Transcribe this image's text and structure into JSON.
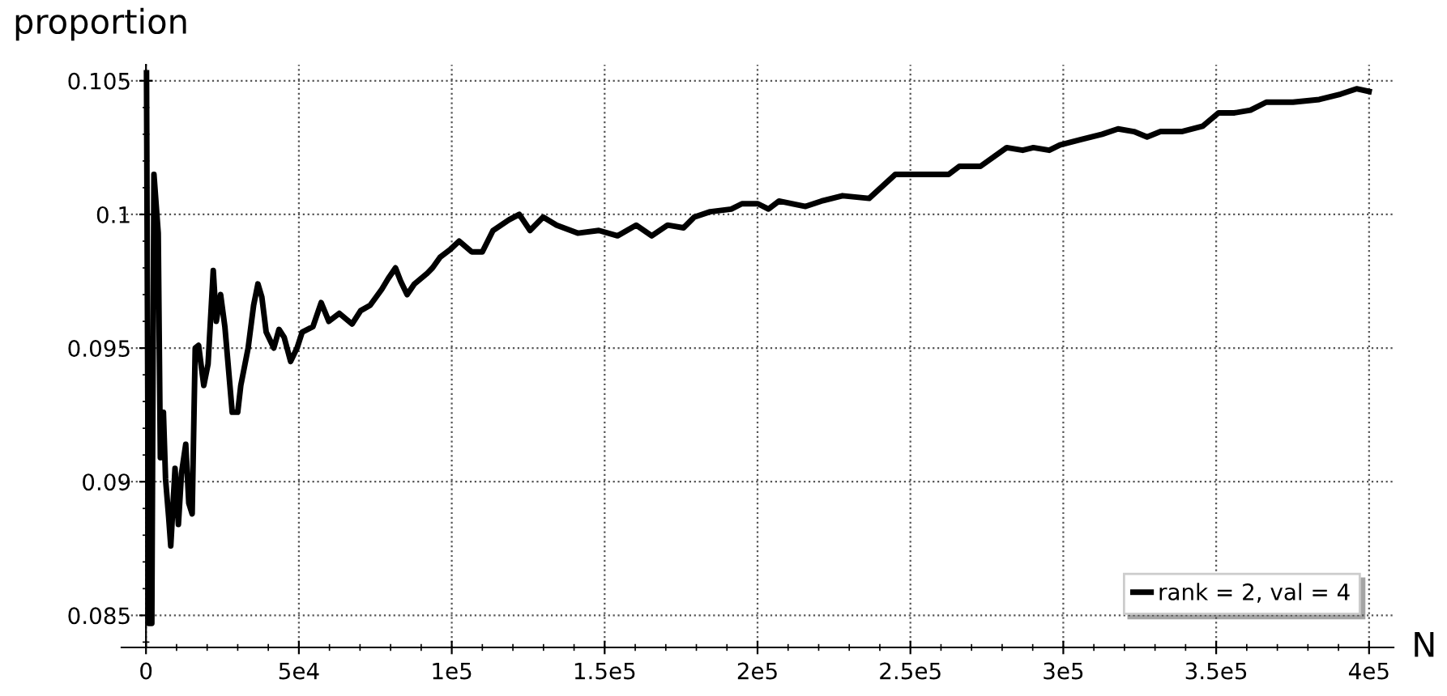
{
  "chart_data": {
    "type": "line",
    "xlabel": "N",
    "ylabel": "proportion",
    "x": [
      170,
      870,
      1900,
      2600,
      4000,
      4700,
      5700,
      6400,
      7400,
      8100,
      9500,
      10600,
      11600,
      13000,
      14000,
      15100,
      16100,
      17200,
      18900,
      20300,
      22000,
      23000,
      24400,
      25800,
      28200,
      30000,
      31000,
      33400,
      35200,
      36600,
      37900,
      39300,
      41800,
      43500,
      45200,
      47300,
      49400,
      51100,
      54600,
      57300,
      59800,
      63200,
      67400,
      70200,
      73300,
      77100,
      79200,
      81600,
      83300,
      85400,
      87800,
      92000,
      93700,
      96200,
      99600,
      102400,
      106500,
      110000,
      113500,
      118700,
      122100,
      125600,
      129900,
      134300,
      141200,
      148100,
      154200,
      160300,
      165400,
      170600,
      175800,
      179300,
      184500,
      191400,
      194900,
      200100,
      203600,
      207000,
      215700,
      220900,
      227800,
      236500,
      245100,
      250300,
      257300,
      262500,
      266000,
      272900,
      281500,
      286700,
      290200,
      295400,
      298900,
      305800,
      312700,
      317900,
      323100,
      327400,
      331800,
      338700,
      345600,
      350800,
      356000,
      361200,
      366400,
      375100,
      383700,
      390700,
      395900,
      400000
    ],
    "series": [
      {
        "name": "rank = 2, val = 4",
        "color": "#000000",
        "values": [
          0.1053,
          0.0847,
          0.0847,
          0.1015,
          0.0993,
          0.0909,
          0.0926,
          0.0901,
          0.0887,
          0.0876,
          0.0905,
          0.0884,
          0.0903,
          0.0914,
          0.0892,
          0.0888,
          0.095,
          0.0951,
          0.0936,
          0.0944,
          0.0979,
          0.096,
          0.097,
          0.0958,
          0.0926,
          0.0926,
          0.0936,
          0.095,
          0.0966,
          0.0974,
          0.0969,
          0.0956,
          0.095,
          0.0957,
          0.0954,
          0.0945,
          0.095,
          0.0956,
          0.0958,
          0.0967,
          0.096,
          0.0963,
          0.0959,
          0.0964,
          0.0966,
          0.0972,
          0.0976,
          0.098,
          0.0975,
          0.097,
          0.0974,
          0.0978,
          0.098,
          0.0984,
          0.0987,
          0.099,
          0.0986,
          0.0986,
          0.0994,
          0.0998,
          0.1,
          0.0994,
          0.0999,
          0.0996,
          0.0993,
          0.0994,
          0.0992,
          0.0996,
          0.0992,
          0.0996,
          0.0995,
          0.0999,
          0.1001,
          0.1002,
          0.1004,
          0.1004,
          0.1002,
          0.1005,
          0.1003,
          0.1005,
          0.1007,
          0.1006,
          0.1015,
          0.1015,
          0.1015,
          0.1015,
          0.1018,
          0.1018,
          0.1025,
          0.1024,
          0.1025,
          0.1024,
          0.1026,
          0.1028,
          0.103,
          0.1032,
          0.1031,
          0.1029,
          0.1031,
          0.1031,
          0.1033,
          0.1038,
          0.1038,
          0.1039,
          0.1042,
          0.1042,
          0.1043,
          0.1045,
          0.1047,
          0.1046
        ]
      }
    ],
    "xlim": [
      -8000,
      408000
    ],
    "ylim": [
      0.0838,
      0.1056
    ],
    "xticks": [
      0,
      {
        "value": 50000,
        "label": "5e4"
      },
      {
        "value": 100000,
        "label": "1e5"
      },
      {
        "value": 150000,
        "label": "1.5e5"
      },
      {
        "value": 200000,
        "label": "2e5"
      },
      {
        "value": 250000,
        "label": "2.5e5"
      },
      {
        "value": 300000,
        "label": "3e5"
      },
      {
        "value": 350000,
        "label": "3.5e5"
      },
      {
        "value": 400000,
        "label": "4e5"
      }
    ],
    "yticks": [
      0.085,
      0.09,
      0.095,
      0.1,
      0.105
    ],
    "grid": true,
    "legend": "bottom right"
  }
}
